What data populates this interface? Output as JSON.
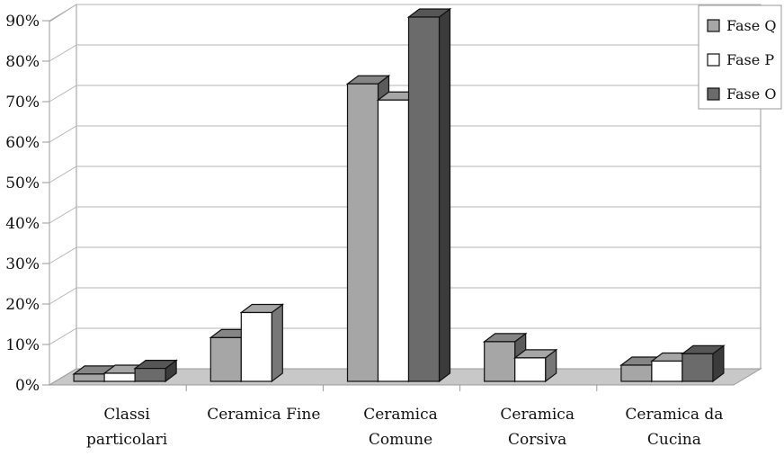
{
  "chart_data": {
    "type": "bar",
    "title": "",
    "xlabel": "",
    "ylabel": "",
    "ylim": [
      0,
      90
    ],
    "y_ticks": [
      "0%",
      "10%",
      "20%",
      "30%",
      "40%",
      "50%",
      "60%",
      "70%",
      "80%",
      "90%"
    ],
    "y_tick_values": [
      0,
      10,
      20,
      30,
      40,
      50,
      60,
      70,
      80,
      90
    ],
    "grid": true,
    "legend_position": "top-right",
    "categories": [
      [
        "Classi",
        "particolari"
      ],
      [
        "Ceramica Fine"
      ],
      [
        "Ceramica",
        "Comune"
      ],
      [
        "Ceramica",
        "Corsiva"
      ],
      [
        "Ceramica da",
        "Cucina"
      ]
    ],
    "series": [
      {
        "name": "Fase Q",
        "color": "#a6a6a6",
        "values": [
          1.8,
          10.8,
          73.5,
          9.8,
          4.0
        ]
      },
      {
        "name": "Fase P",
        "color": "#ffffff",
        "values": [
          2.0,
          17.0,
          69.5,
          5.8,
          5.0
        ]
      },
      {
        "name": "Fase O",
        "color": "#6b6b6b",
        "values": [
          3.2,
          null,
          90.0,
          null,
          6.8
        ]
      }
    ]
  }
}
